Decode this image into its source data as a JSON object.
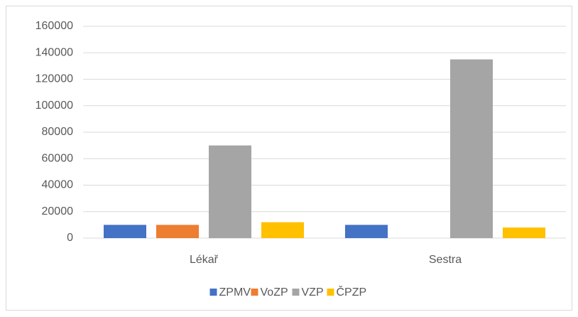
{
  "chart_data": {
    "type": "bar",
    "categories": [
      "Lékař",
      "Sestra"
    ],
    "series": [
      {
        "name": "ZPMV",
        "color": "#4472c4",
        "values": [
          10000,
          10000
        ]
      },
      {
        "name": "VoZP",
        "color": "#ed7d31",
        "values": [
          10000,
          0
        ]
      },
      {
        "name": "VZP",
        "color": "#a5a5a5",
        "values": [
          70000,
          135000
        ]
      },
      {
        "name": "ČPZP",
        "color": "#ffc000",
        "values": [
          12000,
          8000
        ]
      }
    ],
    "ylim": [
      0,
      160000
    ],
    "yticks": [
      0,
      20000,
      40000,
      60000,
      80000,
      100000,
      120000,
      140000,
      160000
    ],
    "grid": true,
    "legend": "bottom"
  }
}
